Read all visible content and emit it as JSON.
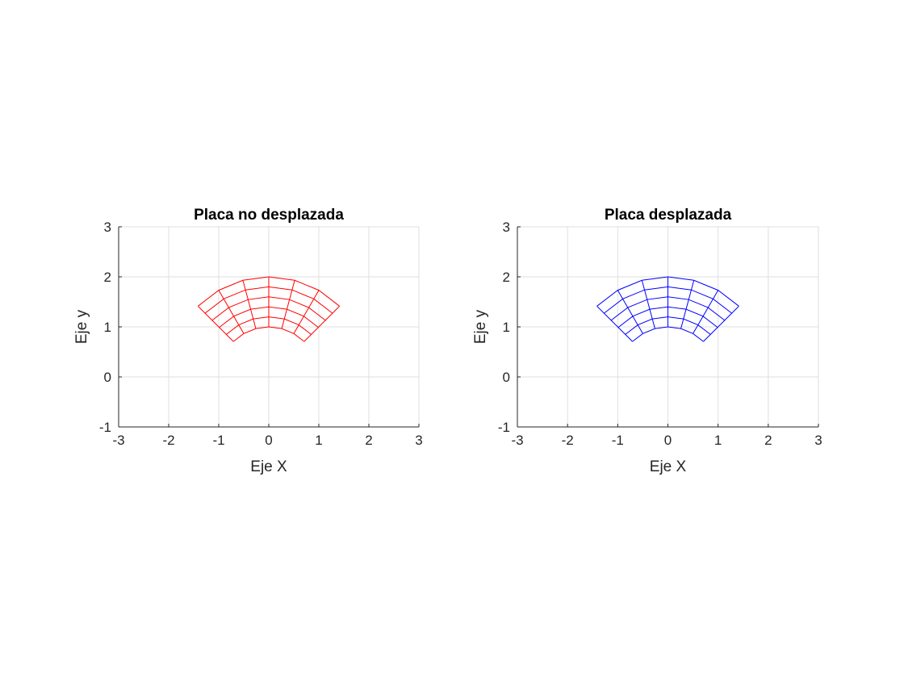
{
  "chart_data": [
    {
      "type": "line",
      "title": "Placa no desplazada",
      "xlabel": "Eje X",
      "ylabel": "Eje y",
      "xlim": [
        -3,
        3
      ],
      "ylim": [
        -1,
        3
      ],
      "xticks": [
        "-3",
        "-2",
        "-1",
        "0",
        "1",
        "2",
        "3"
      ],
      "yticks": [
        "-1",
        "0",
        "1",
        "2",
        "3"
      ],
      "grid": true,
      "series": [
        {
          "color": "#ff0000",
          "mesh": {
            "r": [
              1,
              1.2,
              1.4,
              1.6,
              1.8,
              2
            ],
            "theta_deg": [
              45,
              60,
              75,
              90,
              105,
              120,
              135
            ]
          }
        }
      ]
    },
    {
      "type": "line",
      "title": "Placa desplazada",
      "xlabel": "Eje X",
      "ylabel": "Eje y",
      "xlim": [
        -3,
        3
      ],
      "ylim": [
        -1,
        3
      ],
      "xticks": [
        "-3",
        "-2",
        "-1",
        "0",
        "1",
        "2",
        "3"
      ],
      "yticks": [
        "-1",
        "0",
        "1",
        "2",
        "3"
      ],
      "grid": true,
      "series": [
        {
          "color": "#0000ff",
          "mesh": {
            "r": [
              1,
              1.2,
              1.4,
              1.6,
              1.8,
              2
            ],
            "theta_deg": [
              45,
              60,
              75,
              90,
              105,
              120,
              135
            ]
          }
        }
      ]
    }
  ]
}
